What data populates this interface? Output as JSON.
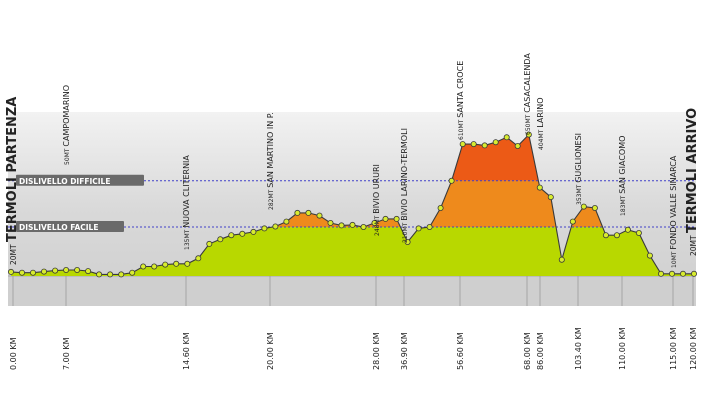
{
  "chart_data": {
    "type": "area",
    "title": "",
    "xlabel": "",
    "ylabel": "",
    "colors": {
      "facile": "#b8d800",
      "medio": "#ee8a1c",
      "difficile": "#ec5a16",
      "band_dark": "#c8c8c8",
      "band_light": "#e2e2e2",
      "threshold_line": "#4040c8",
      "marker": "#d8ec30"
    },
    "thresholds": [
      {
        "label": "DISLIVELLO DIFFICILE",
        "altitude": 350
      },
      {
        "label": "DISLIVELLO FACILE",
        "altitude": 180
      }
    ],
    "profile_altitude_m": [
      15,
      12,
      12,
      16,
      20,
      22,
      22,
      18,
      6,
      6,
      6,
      12,
      35,
      35,
      42,
      45,
      45,
      65,
      118,
      135,
      150,
      155,
      162,
      175,
      182,
      200,
      232,
      232,
      222,
      195,
      186,
      188,
      180,
      195,
      210,
      210,
      125,
      175,
      180,
      250,
      350,
      485,
      485,
      480,
      492,
      510,
      478,
      520,
      325,
      290,
      60,
      200,
      255,
      250,
      150,
      150,
      170,
      158,
      75,
      8,
      8,
      8,
      8
    ],
    "waypoints": [
      {
        "name": "TERMOLI PARTENZA",
        "alt": "20MT",
        "km": "0.00 KM"
      },
      {
        "name": "CAMPOMARINO",
        "alt": "50MT",
        "km": "7.00 KM"
      },
      {
        "name": "NUOVA CLITERNIA",
        "alt": "135MT",
        "km": "14.60 KM"
      },
      {
        "name": "SAN MARTINO IN P.",
        "alt": "282MT",
        "km": "20.00 KM"
      },
      {
        "name": "BIVIO URURI",
        "alt": "248MT",
        "km": "28.00 KM"
      },
      {
        "name": "BIVIO LARINO-TERMOLI",
        "alt": "210MT",
        "km": "36.90 KM"
      },
      {
        "name": "SANTA CROCE",
        "alt": "610MT",
        "km": "56.60 KM"
      },
      {
        "name": "CASACALENDA",
        "alt": "650MT",
        "km": "68.00 KM"
      },
      {
        "name": "LARINO",
        "alt": "404MT",
        "km": "86.00 KM"
      },
      {
        "name": "GUGLIONESI",
        "alt": "353MT",
        "km": "103.40 KM"
      },
      {
        "name": "SAN GIACOMO",
        "alt": "183MT",
        "km": "110.00 KM"
      },
      {
        "name": "FONDO VALLE SINARCA",
        "alt": "10MT",
        "km": "115.00 KM"
      },
      {
        "name": "TERMOLI ARRIVO",
        "alt": "20MT",
        "km": "120.00 KM"
      }
    ]
  }
}
